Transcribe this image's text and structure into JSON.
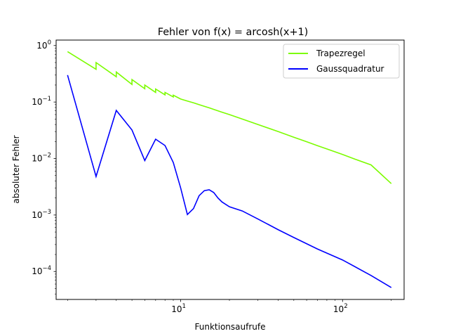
{
  "chart_data": {
    "type": "line",
    "title": "Fehler von f(x) = arcosh(x+1)",
    "xlabel": "Funktionsaufrufe",
    "ylabel": "absoluter Fehler",
    "xscale": "log",
    "yscale": "log",
    "xlim": [
      1.7,
      240
    ],
    "ylim": [
      3.2e-05,
      1.25
    ],
    "xticks": [
      {
        "value": 10,
        "base": "10",
        "exp": "1"
      },
      {
        "value": 100,
        "base": "10",
        "exp": "2"
      }
    ],
    "yticks": [
      {
        "value": 0.0001,
        "base": "10",
        "exp": "−4"
      },
      {
        "value": 0.001,
        "base": "10",
        "exp": "−3"
      },
      {
        "value": 0.01,
        "base": "10",
        "exp": "−2"
      },
      {
        "value": 0.1,
        "base": "10",
        "exp": "−1"
      },
      {
        "value": 1,
        "base": "10",
        "exp": "0"
      }
    ],
    "grid": false,
    "legend_position": "top-right",
    "series": [
      {
        "name": "Trapezregel",
        "color": "#7cfc00",
        "points": [
          [
            2,
            0.78
          ],
          [
            3,
            0.38
          ],
          [
            3,
            0.5
          ],
          [
            4,
            0.28
          ],
          [
            4,
            0.34
          ],
          [
            5,
            0.205
          ],
          [
            5,
            0.25
          ],
          [
            6,
            0.172
          ],
          [
            6,
            0.2
          ],
          [
            7,
            0.148
          ],
          [
            7,
            0.17
          ],
          [
            8,
            0.134
          ],
          [
            8,
            0.148
          ],
          [
            9,
            0.123
          ],
          [
            9,
            0.132
          ],
          [
            10,
            0.113
          ],
          [
            11,
            0.104
          ],
          [
            12,
            0.097
          ],
          [
            13,
            0.09
          ],
          [
            14,
            0.084
          ],
          [
            15,
            0.079
          ],
          [
            16,
            0.074
          ],
          [
            18,
            0.066
          ],
          [
            20,
            0.06
          ],
          [
            25,
            0.048
          ],
          [
            30,
            0.04
          ],
          [
            40,
            0.03
          ],
          [
            50,
            0.0238
          ],
          [
            60,
            0.0198
          ],
          [
            70,
            0.0169
          ],
          [
            80,
            0.0148
          ],
          [
            100,
            0.0118
          ],
          [
            120,
            0.0097
          ],
          [
            150,
            0.0077
          ],
          [
            200,
            0.0036
          ]
        ]
      },
      {
        "name": "Gaussquadratur",
        "color": "#0000ff",
        "points": [
          [
            2,
            0.3
          ],
          [
            3,
            0.0048
          ],
          [
            4,
            0.071
          ],
          [
            5,
            0.032
          ],
          [
            6,
            0.0092
          ],
          [
            7,
            0.022
          ],
          [
            8,
            0.017
          ],
          [
            9,
            0.0085
          ],
          [
            10,
            0.003
          ],
          [
            11,
            0.00102
          ],
          [
            12,
            0.0013
          ],
          [
            13,
            0.0022
          ],
          [
            14,
            0.0027
          ],
          [
            15,
            0.0028
          ],
          [
            16,
            0.0025
          ],
          [
            17,
            0.002
          ],
          [
            18,
            0.0017
          ],
          [
            20,
            0.0014
          ],
          [
            24,
            0.00118
          ],
          [
            30,
            0.00085
          ],
          [
            40,
            0.00055
          ],
          [
            50,
            0.0004
          ],
          [
            70,
            0.00025
          ],
          [
            100,
            0.00016
          ],
          [
            150,
            8.5e-05
          ],
          [
            200,
            5.2e-05
          ]
        ]
      }
    ]
  }
}
